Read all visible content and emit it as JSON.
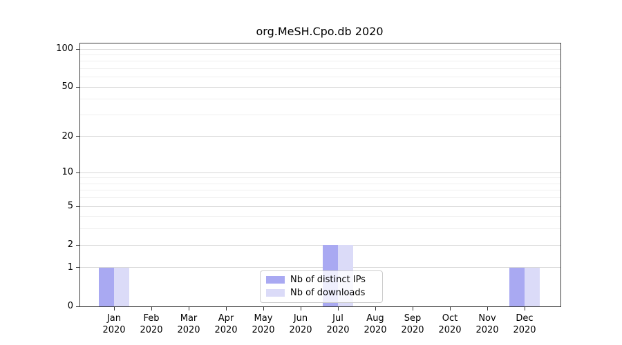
{
  "title": "org.MeSH.Cpo.db 2020",
  "legend": {
    "items": [
      {
        "label": "Nb of distinct IPs",
        "color": "#a9a9f2"
      },
      {
        "label": "Nb of downloads",
        "color": "#dbdbf8"
      }
    ]
  },
  "chart_data": {
    "type": "bar",
    "title": "org.MeSH.Cpo.db 2020",
    "categories": [
      "Jan 2020",
      "Feb 2020",
      "Mar 2020",
      "Apr 2020",
      "May 2020",
      "Jun 2020",
      "Jul 2020",
      "Aug 2020",
      "Sep 2020",
      "Oct 2020",
      "Nov 2020",
      "Dec 2020"
    ],
    "series": [
      {
        "name": "Nb of distinct IPs",
        "color": "#a9a9f2",
        "values": [
          1,
          0,
          0,
          0,
          0,
          0,
          2,
          0,
          0,
          0,
          0,
          1
        ]
      },
      {
        "name": "Nb of downloads",
        "color": "#dbdbf8",
        "values": [
          1,
          0,
          0,
          0,
          0,
          0,
          2,
          0,
          0,
          0,
          0,
          1
        ]
      }
    ],
    "xlabel": "",
    "ylabel": "",
    "yscale": "log1p",
    "yticks_major": [
      0,
      1,
      2,
      5,
      10,
      20,
      50,
      100
    ],
    "yticks_minor": [
      3,
      4,
      6,
      7,
      8,
      9,
      30,
      40,
      60,
      70,
      80,
      90
    ],
    "ylim": [
      0,
      105
    ],
    "grid": "horizontal",
    "legend_position": "lower center",
    "colors": {
      "grid_major": "#d7d7d7",
      "grid_minor": "#efefef",
      "spine": "#3a3a3a"
    }
  }
}
